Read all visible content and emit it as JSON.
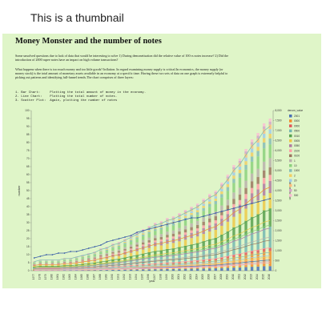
{
  "thumbnail_label": "This is a thumbnail",
  "page": {
    "title": "Money Monster and the number of notes",
    "para1": "Some unsolved questions due to lack of data that would be interesting to solve 1) During demonetisation did the relative value of 100 rs notes increase? 2) Did the introduction of 2000 rupee notes have an impact on high volume transactions?",
    "para2": "What happens when there is too much money and too little goods? Inflation. In regard examining money supply is critical.In economics, the money supply (or money stock) is the total amount of monetary assets available in an economy at a specific time. Having these two sets of data on one graph is extremely helpful to picking out patterns and identifying full-funnel trends.The chart comprises of three layers:",
    "layers": [
      "1. Bar Chart:     Plotting the total amount of money in the economy.",
      "2. Line Chart:    Plotting the total number of notes.",
      "3. Scatter Plot:  Again, plotting the number of notes"
    ]
  },
  "chart_data": {
    "type": "bar",
    "xlabel": "year",
    "ylabel_left": "number",
    "ylabel_right": "denomination",
    "legend_title": "denom_value",
    "categories": [
      "1977",
      "1978",
      "1979",
      "1980",
      "1981",
      "1982",
      "1983",
      "1984",
      "1985",
      "1986",
      "1987",
      "1988",
      "1989",
      "1990",
      "1991",
      "1992",
      "1993",
      "1994",
      "1995",
      "1996",
      "1997",
      "1998",
      "1999",
      "2000",
      "2001",
      "2002",
      "2003",
      "2004",
      "2005",
      "2006",
      "2007",
      "2008",
      "2009",
      "2010",
      "2011",
      "2012",
      "2013",
      "2014",
      "2015",
      "2016"
    ],
    "left_axis_ticks": [
      "0",
      "5",
      "10",
      "15",
      "20",
      "25",
      "30",
      "35",
      "40",
      "45",
      "50",
      "55",
      "60",
      "65",
      "70",
      "75",
      "80",
      "85",
      "90",
      "95",
      "100"
    ],
    "right_axis_ticks": [
      "0",
      "500",
      "1,000",
      "1,500",
      "2,000",
      "2,500",
      "3,000",
      "3,500",
      "4,000",
      "4,500",
      "5,000",
      "5,500",
      "6,000",
      "6,500",
      "7,000",
      "7,500",
      "8,000"
    ],
    "totals": [
      6,
      7,
      7,
      7,
      7,
      8,
      8,
      9,
      10,
      11,
      12,
      14,
      15,
      17,
      18,
      20,
      22,
      24,
      26,
      28,
      30,
      31,
      33,
      34,
      36,
      38,
      40,
      42,
      45,
      48,
      50,
      55,
      60,
      66,
      70,
      76,
      82,
      86,
      92,
      95
    ],
    "line_total": [
      8,
      9,
      10,
      10,
      11,
      11,
      12,
      12,
      13,
      14,
      15,
      16,
      18,
      19,
      20,
      21,
      22,
      24,
      25,
      26,
      27,
      28,
      29,
      30,
      31,
      32,
      33,
      33,
      34,
      35,
      36,
      37,
      38,
      39,
      40,
      41,
      42,
      43,
      44,
      45
    ],
    "legend": [
      {
        "label": "2001",
        "color": "#4a6fb5"
      },
      {
        "label": "0000",
        "color": "#f28e2b"
      },
      {
        "label": "0000",
        "color": "#e15759"
      },
      {
        "label": "0500",
        "color": "#76b7b2"
      },
      {
        "label": "0010",
        "color": "#59a14f"
      },
      {
        "label": "0005",
        "color": "#edc948"
      },
      {
        "label": "0050",
        "color": "#b07aa1"
      },
      {
        "label": "2100",
        "color": "#ff9da7"
      },
      {
        "label": "0100",
        "color": "#9c755f"
      },
      {
        "label": "1",
        "color": "#bab0ac"
      },
      {
        "label": "10",
        "color": "#8cd17d"
      },
      {
        "label": "1000",
        "color": "#86bcb6"
      },
      {
        "label": "2",
        "color": "#f1ce63"
      },
      {
        "label": "20",
        "color": "#a0cbe8"
      },
      {
        "label": "5",
        "color": "#ffbe7d"
      },
      {
        "label": "50",
        "color": "#d4a6c8"
      },
      {
        "label": "500",
        "color": "#fabfd2"
      }
    ]
  }
}
